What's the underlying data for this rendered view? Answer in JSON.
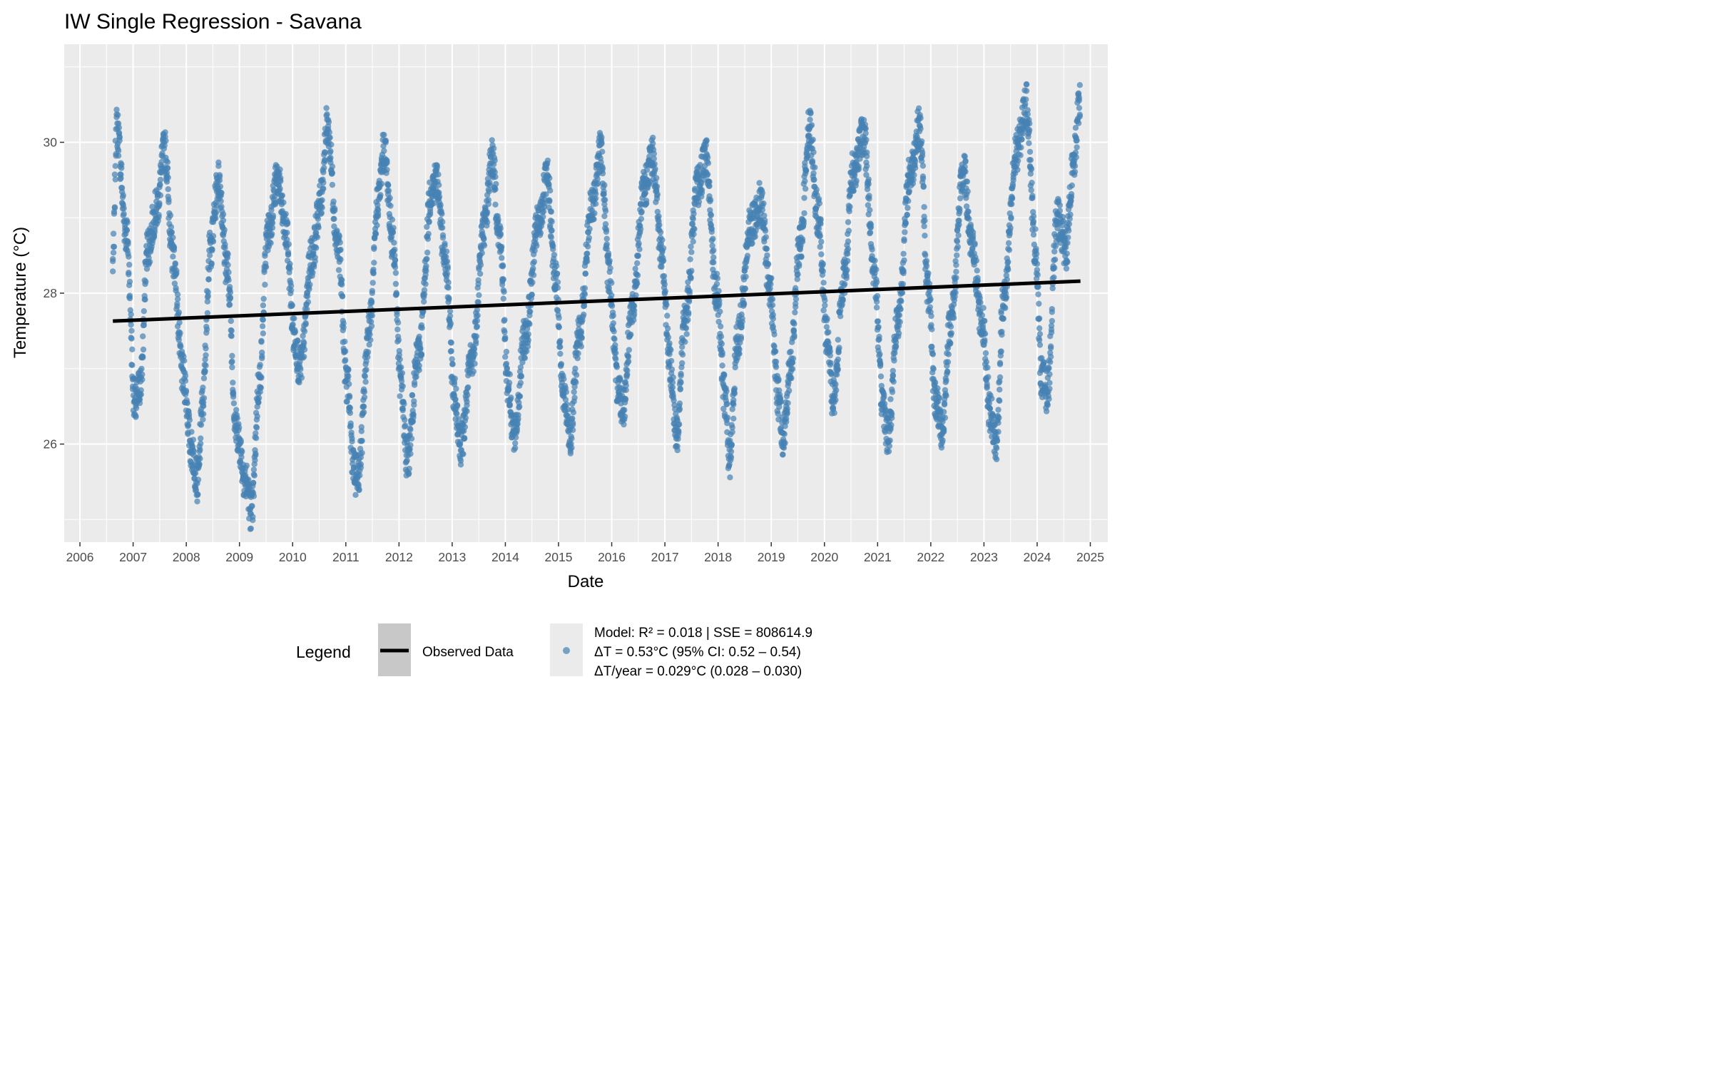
{
  "chart_data": {
    "type": "line",
    "title": "IW Single Regression - Savana",
    "xlabel": "Date",
    "ylabel": "Temperature (°C)",
    "x_ticks": [
      "2006",
      "2007",
      "2008",
      "2009",
      "2010",
      "2011",
      "2012",
      "2013",
      "2014",
      "2015",
      "2016",
      "2017",
      "2018",
      "2019",
      "2020",
      "2021",
      "2022",
      "2023",
      "2024",
      "2025"
    ],
    "y_ticks": [
      26,
      28,
      30
    ],
    "xlim": [
      "2005-09-15",
      "2025-05-01"
    ],
    "ylim": [
      24.7,
      31.3
    ],
    "grid": true,
    "legend_position": "bottom",
    "legend": {
      "title": "Legend",
      "items": [
        {
          "label": "Observed Data",
          "type": "line"
        },
        {
          "label_lines": [
            "Model: R² = 0.018 | SSE = 808614.9",
            "ΔT = 0.53°C (95% CI: 0.52 – 0.54)",
            "ΔT/year = 0.029°C (0.028 – 0.030)"
          ],
          "type": "point"
        }
      ]
    },
    "series": [
      {
        "type": "scatter",
        "color": "#4682b4",
        "x": [
          "2006-08-15",
          "2006-09-10",
          "2006-11-15",
          "2007-01-15",
          "2007-02-20",
          "2007-04-10",
          "2007-06-10",
          "2007-08-05",
          "2007-10-01",
          "2007-12-10",
          "2008-02-10",
          "2008-03-20",
          "2008-04-20",
          "2008-06-15",
          "2008-08-10",
          "2008-10-10",
          "2008-12-10",
          "2009-02-15",
          "2009-03-25",
          "2009-05-15",
          "2009-07-15",
          "2009-09-20",
          "2009-11-15",
          "2010-01-15",
          "2010-02-20",
          "2010-05-15",
          "2010-07-10",
          "2010-08-25",
          "2010-11-10",
          "2011-01-10",
          "2011-03-01",
          "2011-03-25",
          "2011-06-15",
          "2011-08-15",
          "2011-09-20",
          "2011-11-20",
          "2012-01-15",
          "2012-02-25",
          "2012-05-15",
          "2012-08-15",
          "2012-09-15",
          "2012-11-15",
          "2013-01-20",
          "2013-03-01",
          "2013-05-15",
          "2013-08-10",
          "2013-10-01",
          "2013-11-25",
          "2014-01-20",
          "2014-03-01",
          "2014-05-15",
          "2014-08-15",
          "2014-10-15",
          "2014-12-10",
          "2015-02-10",
          "2015-03-20",
          "2015-05-20",
          "2015-08-15",
          "2015-10-20",
          "2015-12-10",
          "2016-02-10",
          "2016-03-20",
          "2016-05-15",
          "2016-08-15",
          "2016-10-10",
          "2016-12-10",
          "2017-02-10",
          "2017-03-20",
          "2017-05-15",
          "2017-08-15",
          "2017-10-10",
          "2017-12-20",
          "2018-02-20",
          "2018-03-20",
          "2018-05-15",
          "2018-08-15",
          "2018-10-20",
          "2018-12-20",
          "2019-02-20",
          "2019-03-25",
          "2019-05-15",
          "2019-07-15",
          "2019-09-20",
          "2019-11-20",
          "2020-01-20",
          "2020-03-01",
          "2020-05-15",
          "2020-07-15",
          "2020-09-25",
          "2020-12-10",
          "2021-02-01",
          "2021-03-15",
          "2021-05-15",
          "2021-08-15",
          "2021-10-15",
          "2021-12-15",
          "2022-02-01",
          "2022-03-20",
          "2022-05-15",
          "2022-08-15",
          "2022-10-10",
          "2022-12-20",
          "2023-02-15",
          "2023-03-25",
          "2023-05-15",
          "2023-08-15",
          "2023-10-20",
          "2023-12-20",
          "2024-02-01",
          "2024-03-10",
          "2024-05-20",
          "2024-07-20",
          "2024-09-01",
          "2024-10-25"
        ],
        "y": [
          28.4,
          30.2,
          28.8,
          26.5,
          26.8,
          28.6,
          29.1,
          29.9,
          28.5,
          26.9,
          25.9,
          25.5,
          26.5,
          28.6,
          29.5,
          28.3,
          26.2,
          25.5,
          25.1,
          26.8,
          28.8,
          29.5,
          28.8,
          27.4,
          27.0,
          28.5,
          29.2,
          30.2,
          28.6,
          26.8,
          25.6,
          25.6,
          27.6,
          29.3,
          29.9,
          28.7,
          26.8,
          25.8,
          27.2,
          29.4,
          29.5,
          28.4,
          26.6,
          26.0,
          27.1,
          28.9,
          29.8,
          28.7,
          26.8,
          26.1,
          27.4,
          28.9,
          29.5,
          28.2,
          26.6,
          26.1,
          27.4,
          29.1,
          29.9,
          28.3,
          26.8,
          26.5,
          27.7,
          29.4,
          29.8,
          28.5,
          27.0,
          26.1,
          27.6,
          29.4,
          29.8,
          28.0,
          26.6,
          25.8,
          27.4,
          28.9,
          29.2,
          28.1,
          26.6,
          26.1,
          27.1,
          28.6,
          30.2,
          29.0,
          27.4,
          26.6,
          28.2,
          29.6,
          30.1,
          28.3,
          26.6,
          26.1,
          27.6,
          29.6,
          30.2,
          28.0,
          26.6,
          26.2,
          27.6,
          29.6,
          28.6,
          27.6,
          26.4,
          26.0,
          27.9,
          29.9,
          30.5,
          28.6,
          26.9,
          26.7,
          29.0,
          28.6,
          29.6,
          30.6
        ]
      },
      {
        "name": "Observed Data",
        "type": "line",
        "color": "#000000",
        "x": [
          "2006-08-15",
          "2024-10-25"
        ],
        "y": [
          27.63,
          28.16
        ]
      }
    ]
  }
}
